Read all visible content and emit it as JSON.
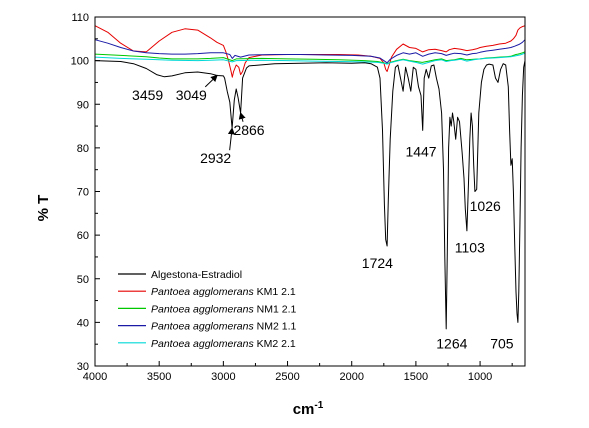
{
  "chart_data": {
    "type": "line",
    "xlabel": "cm",
    "xlabel_superscript": "-1",
    "ylabel": "% T",
    "xlim": [
      4000,
      650
    ],
    "ylim": [
      30,
      110
    ],
    "x_ticks": [
      4000,
      3500,
      3000,
      2500,
      2000,
      1500,
      1000
    ],
    "y_ticks": [
      30,
      40,
      50,
      60,
      70,
      80,
      90,
      100,
      110
    ],
    "grid": false,
    "legend_position": "lower-left",
    "series": [
      {
        "name": "Algestona-Estradiol",
        "italic_part": "",
        "plain_part": "Algestona-Estradiol",
        "color": "#000000",
        "x": [
          4000,
          3800,
          3700,
          3600,
          3520,
          3459,
          3400,
          3300,
          3200,
          3100,
          3049,
          3000,
          2990,
          2970,
          2950,
          2932,
          2915,
          2900,
          2885,
          2866,
          2850,
          2820,
          2800,
          2600,
          2200,
          2000,
          1900,
          1850,
          1800,
          1780,
          1760,
          1745,
          1735,
          1724,
          1715,
          1700,
          1680,
          1660,
          1640,
          1620,
          1600,
          1580,
          1560,
          1540,
          1520,
          1500,
          1480,
          1460,
          1447,
          1435,
          1420,
          1400,
          1380,
          1360,
          1340,
          1320,
          1300,
          1285,
          1275,
          1264,
          1255,
          1245,
          1235,
          1225,
          1215,
          1205,
          1190,
          1175,
          1160,
          1140,
          1125,
          1115,
          1103,
          1090,
          1080,
          1070,
          1060,
          1050,
          1040,
          1026,
          1010,
          990,
          970,
          950,
          930,
          900,
          880,
          860,
          840,
          820,
          800,
          780,
          770,
          760,
          750,
          740,
          730,
          720,
          712,
          705,
          698,
          690,
          680,
          670,
          660,
          650
        ],
        "y": [
          100,
          99.8,
          99.3,
          98.2,
          96.8,
          96.3,
          96.5,
          97.2,
          97.4,
          97.0,
          96.6,
          96.5,
          96.0,
          93.0,
          90.5,
          84.5,
          91.0,
          93.5,
          91.5,
          88.0,
          96.0,
          98.3,
          98.8,
          99.3,
          99.5,
          99.4,
          99.5,
          99.3,
          98.5,
          96.0,
          84.0,
          67.0,
          59.0,
          57.5,
          68.0,
          82.0,
          93.0,
          98.5,
          99.0,
          96.0,
          93.0,
          98.5,
          96.0,
          93.0,
          98.5,
          98.0,
          94.0,
          92.0,
          84.0,
          96.0,
          98.0,
          96.0,
          98.8,
          99.0,
          96.0,
          93.5,
          88.0,
          75.0,
          55.0,
          38.5,
          56.0,
          80.0,
          87.0,
          85.0,
          88.0,
          86.0,
          82.0,
          87.0,
          86.0,
          79.0,
          73.0,
          66.0,
          61.0,
          72.0,
          82.0,
          88.0,
          85.0,
          76.0,
          70.0,
          70.5,
          88.0,
          95.0,
          98.0,
          99.0,
          99.2,
          99.0,
          96.0,
          95.0,
          98.0,
          99.3,
          99.0,
          94.0,
          84.0,
          76.0,
          77.5,
          70.0,
          58.0,
          47.0,
          42.0,
          40.0,
          47.0,
          62.0,
          80.0,
          92.0,
          98.5,
          100.0
        ]
      },
      {
        "name": "Pantoea agglomerans KM1 2.1",
        "italic_part": "Pantoea agglomerans",
        "plain_part": " KM1 2.1",
        "color": "#e60000",
        "x": [
          4000,
          3900,
          3800,
          3700,
          3600,
          3500,
          3400,
          3300,
          3200,
          3100,
          3050,
          3000,
          2980,
          2960,
          2940,
          2930,
          2920,
          2900,
          2880,
          2866,
          2850,
          2830,
          2800,
          2700,
          2500,
          2300,
          2100,
          1950,
          1850,
          1780,
          1750,
          1735,
          1724,
          1710,
          1690,
          1650,
          1600,
          1550,
          1500,
          1447,
          1400,
          1350,
          1300,
          1264,
          1240,
          1200,
          1150,
          1103,
          1060,
          1026,
          1000,
          950,
          900,
          850,
          800,
          760,
          740,
          720,
          705,
          690,
          670,
          650
        ],
        "y": [
          108.0,
          106.5,
          104.0,
          102.2,
          102.0,
          104.5,
          106.5,
          107.3,
          107.0,
          105.2,
          104.2,
          103.5,
          102.0,
          100.0,
          97.5,
          96.2,
          97.5,
          99.0,
          98.5,
          96.8,
          97.5,
          99.5,
          100.7,
          101.3,
          101.4,
          101.4,
          101.4,
          101.3,
          101.0,
          100.5,
          99.5,
          98.0,
          97.5,
          98.8,
          100.8,
          102.6,
          103.8,
          103.0,
          102.8,
          102.0,
          102.5,
          102.6,
          102.3,
          102.0,
          102.5,
          102.8,
          102.6,
          102.3,
          102.5,
          102.7,
          103.0,
          103.3,
          103.5,
          103.8,
          104.0,
          104.5,
          105.0,
          105.8,
          107.0,
          107.5,
          107.8,
          108.0
        ]
      },
      {
        "name": "Pantoea agglomerans NM1 2.1",
        "italic_part": "Pantoea agglomerans",
        "plain_part": " NM1 2.1",
        "color": "#00c800",
        "x": [
          4000,
          3800,
          3600,
          3500,
          3400,
          3300,
          3200,
          3100,
          3000,
          2930,
          2900,
          2700,
          2500,
          2300,
          2100,
          1900,
          1800,
          1750,
          1724,
          1700,
          1650,
          1600,
          1550,
          1500,
          1450,
          1400,
          1350,
          1300,
          1264,
          1200,
          1150,
          1103,
          1050,
          1000,
          950,
          900,
          850,
          800,
          760,
          740,
          720,
          705,
          690,
          670,
          650
        ],
        "y": [
          101.5,
          101.2,
          100.9,
          100.6,
          100.4,
          100.4,
          100.4,
          100.5,
          100.7,
          100.0,
          100.4,
          100.5,
          100.4,
          100.3,
          100.2,
          100.0,
          99.8,
          99.5,
          99.3,
          99.6,
          100.0,
          100.3,
          100.0,
          99.8,
          99.6,
          99.9,
          100.2,
          100.4,
          100.0,
          100.2,
          100.5,
          100.2,
          100.3,
          100.4,
          100.6,
          100.7,
          100.8,
          100.9,
          101.0,
          101.2,
          101.4,
          101.5,
          101.6,
          101.8,
          102.0
        ]
      },
      {
        "name": "Pantoea agglomerans NM2 1.1",
        "italic_part": "Pantoea agglomerans",
        "plain_part": " NM2 1.1",
        "color": "#1a1aa6",
        "x": [
          4000,
          3900,
          3800,
          3700,
          3600,
          3500,
          3400,
          3300,
          3200,
          3100,
          3000,
          2950,
          2930,
          2910,
          2866,
          2800,
          2600,
          2400,
          2200,
          2000,
          1850,
          1780,
          1750,
          1724,
          1700,
          1650,
          1600,
          1550,
          1500,
          1447,
          1400,
          1350,
          1300,
          1264,
          1230,
          1200,
          1150,
          1103,
          1060,
          1026,
          1000,
          950,
          900,
          850,
          800,
          760,
          730,
          705,
          690,
          670,
          650
        ],
        "y": [
          104.8,
          104.0,
          103.0,
          102.2,
          101.8,
          101.6,
          101.5,
          101.5,
          101.6,
          101.8,
          101.8,
          101.4,
          100.5,
          101.2,
          100.8,
          101.3,
          101.4,
          101.4,
          101.3,
          101.2,
          101.0,
          100.6,
          100.0,
          99.5,
          100.3,
          101.2,
          101.8,
          101.5,
          101.8,
          101.0,
          101.5,
          101.8,
          101.6,
          101.2,
          101.5,
          101.7,
          101.6,
          101.3,
          101.6,
          101.7,
          101.9,
          102.2,
          102.4,
          102.6,
          102.8,
          103.0,
          103.3,
          103.6,
          103.8,
          104.2,
          104.8
        ]
      },
      {
        "name": "Pantoea agglomerans KM2 2.1",
        "italic_part": "Pantoea agglomerans",
        "plain_part": " KM2 2.1",
        "color": "#00d8d8",
        "x": [
          4000,
          3800,
          3600,
          3400,
          3200,
          3100,
          3000,
          2930,
          2900,
          2700,
          2500,
          2300,
          2100,
          1900,
          1800,
          1750,
          1724,
          1700,
          1650,
          1600,
          1550,
          1500,
          1447,
          1400,
          1350,
          1300,
          1264,
          1230,
          1200,
          1150,
          1103,
          1050,
          1000,
          950,
          900,
          850,
          800,
          760,
          740,
          720,
          705,
          690,
          670,
          650
        ],
        "y": [
          100.8,
          100.5,
          100.3,
          100.1,
          100.0,
          100.1,
          100.2,
          99.7,
          100.0,
          100.1,
          100.0,
          99.9,
          99.8,
          99.7,
          99.6,
          99.4,
          99.2,
          99.5,
          99.9,
          100.2,
          99.9,
          99.6,
          99.2,
          99.6,
          100.0,
          100.2,
          99.8,
          100.0,
          100.1,
          100.3,
          99.9,
          100.2,
          100.4,
          100.5,
          100.6,
          100.7,
          100.8,
          100.9,
          101.0,
          101.1,
          101.2,
          101.3,
          101.5,
          101.7
        ]
      }
    ],
    "annotations": [
      {
        "label": "3459",
        "x": 3459,
        "y": 96.3,
        "tx": 3590,
        "ty": 91.0,
        "arrow": false
      },
      {
        "label": "3049",
        "x": 3049,
        "y": 96.6,
        "tx": 3250,
        "ty": 91.0,
        "arrow": true
      },
      {
        "label": "2932",
        "x": 2932,
        "y": 84.5,
        "tx": 3060,
        "ty": 76.5,
        "arrow": true
      },
      {
        "label": "2866",
        "x": 2866,
        "y": 88.0,
        "tx": 2800,
        "ty": 83.0,
        "arrow": true
      },
      {
        "label": "1724",
        "x": 1724,
        "y": 57.5,
        "tx": 1800,
        "ty": 52.5,
        "arrow": false
      },
      {
        "label": "1447",
        "x": 1447,
        "y": 84.0,
        "tx": 1460,
        "ty": 78.0,
        "arrow": false
      },
      {
        "label": "1264",
        "x": 1264,
        "y": 38.5,
        "tx": 1220,
        "ty": 34.0,
        "arrow": false
      },
      {
        "label": "1103",
        "x": 1103,
        "y": 61.0,
        "tx": 1080,
        "ty": 56.0,
        "arrow": false
      },
      {
        "label": "1026",
        "x": 1026,
        "y": 70.5,
        "tx": 960,
        "ty": 65.5,
        "arrow": false
      },
      {
        "label": "705",
        "x": 705,
        "y": 40.0,
        "tx": 830,
        "ty": 34.0,
        "arrow": false
      }
    ]
  }
}
